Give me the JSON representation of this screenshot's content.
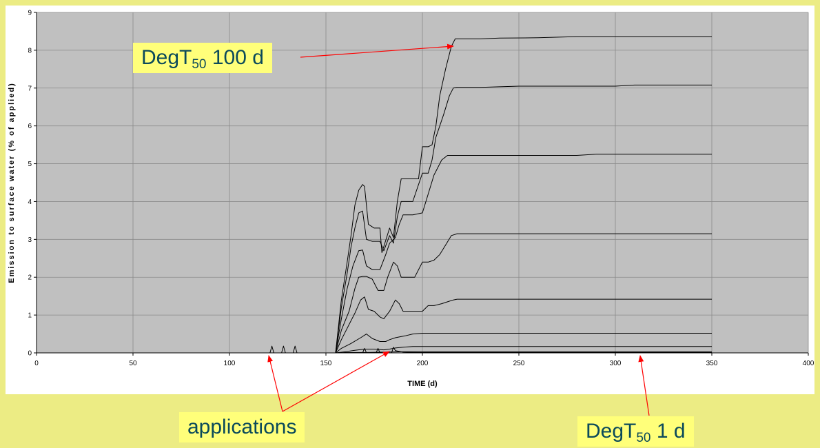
{
  "chart_data": {
    "type": "line",
    "xlabel": "TIME (d)",
    "ylabel": "Emission to surface water (% of applied)",
    "xlim": [
      0,
      400
    ],
    "ylim": [
      0,
      9
    ],
    "xticks": [
      0,
      50,
      100,
      150,
      200,
      250,
      300,
      350,
      400
    ],
    "yticks": [
      0,
      1,
      2,
      3,
      4,
      5,
      6,
      7,
      8,
      9
    ],
    "grid": true,
    "legend": "none",
    "colors": {
      "plot_bg": "#c0c0c0",
      "grid": "#8a8a8a",
      "line": "#000000",
      "arrow": "#ff0000",
      "page_bg": "#ecec84",
      "callout_bg": "#ffff7a",
      "callout_text": "#0b4a5a"
    },
    "series": [
      {
        "x": [
          0,
          121,
          155,
          158,
          161,
          163,
          165,
          167,
          169,
          170,
          172,
          175,
          178,
          179,
          183,
          185,
          187,
          189,
          191,
          195,
          198,
          200,
          203,
          205,
          207,
          209,
          212,
          215,
          217,
          220,
          225,
          230,
          240,
          260,
          280,
          320,
          350
        ],
        "y": [
          0,
          0,
          0,
          1.4,
          2.4,
          3.1,
          3.9,
          4.3,
          4.45,
          4.4,
          3.4,
          3.3,
          3.3,
          2.65,
          3.3,
          3.05,
          4.0,
          4.6,
          4.6,
          4.6,
          4.6,
          5.45,
          5.45,
          5.5,
          6.0,
          6.8,
          7.5,
          8.1,
          8.3,
          8.3,
          8.3,
          8.3,
          8.32,
          8.33,
          8.36,
          8.36,
          8.36
        ]
      },
      {
        "x": [
          0,
          155,
          158,
          161,
          163,
          165,
          167,
          169,
          171,
          174,
          178,
          180,
          183,
          185,
          187,
          189,
          195,
          200,
          203,
          205,
          207,
          211,
          214,
          216,
          218,
          220,
          230,
          250,
          300,
          310,
          350
        ],
        "y": [
          0,
          0,
          1.2,
          2.1,
          2.8,
          3.3,
          3.7,
          3.75,
          3.0,
          2.95,
          2.95,
          2.7,
          3.1,
          2.9,
          3.6,
          4.0,
          4.0,
          4.75,
          4.75,
          5.1,
          5.7,
          6.3,
          6.8,
          7.0,
          7.02,
          7.02,
          7.02,
          7.05,
          7.05,
          7.08,
          7.08
        ]
      },
      {
        "x": [
          0,
          155,
          158,
          161,
          164,
          167,
          169,
          171,
          174,
          178,
          181,
          183,
          186,
          188,
          190,
          195,
          200,
          203,
          206,
          210,
          213,
          216,
          218,
          220,
          230,
          280,
          290,
          350
        ],
        "y": [
          0,
          0,
          0.9,
          1.7,
          2.3,
          2.7,
          2.72,
          2.3,
          2.2,
          2.2,
          2.6,
          2.9,
          3.05,
          3.4,
          3.65,
          3.65,
          3.7,
          4.2,
          4.7,
          5.1,
          5.22,
          5.22,
          5.22,
          5.22,
          5.22,
          5.22,
          5.25,
          5.25
        ]
      },
      {
        "x": [
          0,
          155,
          158,
          162,
          165,
          167,
          169,
          171,
          174,
          177,
          180,
          182,
          185,
          187,
          189,
          193,
          196,
          200,
          203,
          206,
          209,
          212,
          215,
          218,
          220,
          250,
          350
        ],
        "y": [
          0,
          0,
          0.6,
          1.1,
          1.7,
          2.0,
          2.02,
          2.02,
          1.95,
          1.65,
          1.65,
          2.0,
          2.4,
          2.3,
          2.0,
          2.0,
          2.0,
          2.4,
          2.4,
          2.45,
          2.6,
          2.85,
          3.1,
          3.15,
          3.15,
          3.15,
          3.15
        ]
      },
      {
        "x": [
          0,
          155,
          158,
          162,
          165,
          168,
          170,
          172,
          175,
          178,
          180,
          183,
          186,
          188,
          190,
          195,
          200,
          203,
          206,
          210,
          213,
          216,
          218,
          350
        ],
        "y": [
          0,
          0,
          0.35,
          0.75,
          1.05,
          1.4,
          1.48,
          1.15,
          1.1,
          0.95,
          0.9,
          1.1,
          1.4,
          1.3,
          1.1,
          1.1,
          1.1,
          1.25,
          1.25,
          1.3,
          1.35,
          1.4,
          1.42,
          1.42
        ]
      },
      {
        "x": [
          0,
          155,
          158,
          163,
          168,
          171,
          174,
          178,
          181,
          183,
          186,
          188,
          191,
          195,
          200,
          350
        ],
        "y": [
          0,
          0,
          0.12,
          0.25,
          0.4,
          0.5,
          0.38,
          0.3,
          0.3,
          0.35,
          0.4,
          0.42,
          0.45,
          0.5,
          0.52,
          0.52
        ]
      },
      {
        "x": [
          0,
          155,
          160,
          165,
          170,
          175,
          180,
          183,
          186,
          190,
          195,
          350
        ],
        "y": [
          0,
          0,
          0.03,
          0.07,
          0.1,
          0.1,
          0.08,
          0.1,
          0.13,
          0.15,
          0.17,
          0.17
        ]
      },
      {
        "x": [
          0,
          121,
          122,
          123,
          127,
          128,
          129,
          133,
          134,
          135,
          155,
          160,
          170,
          180,
          190,
          200,
          350
        ],
        "y": [
          0,
          0,
          0.18,
          0,
          0,
          0.18,
          0,
          0,
          0.18,
          0,
          0,
          0.01,
          0.01,
          0.02,
          0.03,
          0.03,
          0.03
        ]
      },
      {
        "x": [
          0,
          169,
          170,
          171,
          176,
          177,
          178,
          184,
          185,
          186,
          190,
          200,
          350
        ],
        "y": [
          0,
          0,
          0.12,
          0,
          0,
          0.12,
          0,
          0,
          0.15,
          0.06,
          0.02,
          0.01,
          0.01
        ]
      },
      {
        "x": [
          0,
          365
        ],
        "y": [
          0,
          0
        ]
      }
    ],
    "annotations": [
      {
        "text_main": "DegT",
        "text_sub": "50",
        "text_tail": " 100 d",
        "target_x": 218,
        "target_y": 8.3
      },
      {
        "text": "applications",
        "targets": [
          {
            "x": 122,
            "y": 0
          },
          {
            "x": 185,
            "y": 0.1
          }
        ]
      },
      {
        "text_main": "DegT",
        "text_sub": "50",
        "text_tail": " 1 d",
        "target_x": 312,
        "target_y": 0
      }
    ]
  }
}
